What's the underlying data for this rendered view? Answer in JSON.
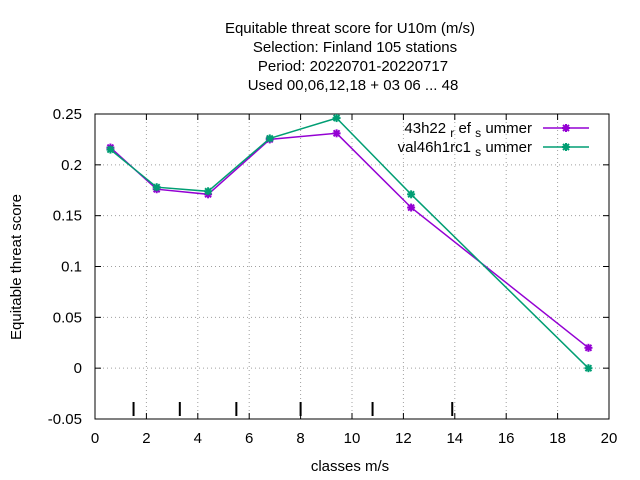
{
  "chart_data": {
    "type": "line",
    "title_lines": [
      "Equitable threat score  for U10m (m/s)",
      "Selection: Finland    105 stations",
      "Period: 20220701-20220717",
      "Used  00,06,12,18  + 03 06 ... 48"
    ],
    "xlabel": "classes m/s",
    "ylabel": "Equitable threat score",
    "xlim": [
      0,
      20
    ],
    "ylim": [
      -0.05,
      0.25
    ],
    "xticks": [
      0,
      2,
      4,
      6,
      8,
      10,
      12,
      14,
      16,
      18,
      20
    ],
    "yticks": [
      -0.05,
      0,
      0.05,
      0.1,
      0.15,
      0.2,
      0.25
    ],
    "ytick_labels": [
      "-0.05",
      "0",
      "0.05",
      "0.1",
      "0.15",
      "0.2",
      "0.25"
    ],
    "grid": true,
    "legend_position": "top-right",
    "class_bounds": [
      1.5,
      3.3,
      5.5,
      8.0,
      10.8,
      13.9
    ],
    "series": [
      {
        "name_parts": [
          "43h22",
          "r",
          "ef",
          "s",
          "ummer"
        ],
        "color": "#9400d3",
        "x": [
          0.6,
          2.4,
          4.4,
          6.8,
          9.4,
          12.3,
          19.2
        ],
        "y": [
          0.217,
          0.176,
          0.171,
          0.225,
          0.231,
          0.158,
          0.02
        ]
      },
      {
        "name_parts": [
          "val46h1rc1",
          "s",
          "ummer"
        ],
        "color": "#009e73",
        "x": [
          0.6,
          2.4,
          4.4,
          6.8,
          9.4,
          12.3,
          19.2
        ],
        "y": [
          0.215,
          0.178,
          0.174,
          0.226,
          0.246,
          0.171,
          0.0
        ]
      }
    ]
  }
}
